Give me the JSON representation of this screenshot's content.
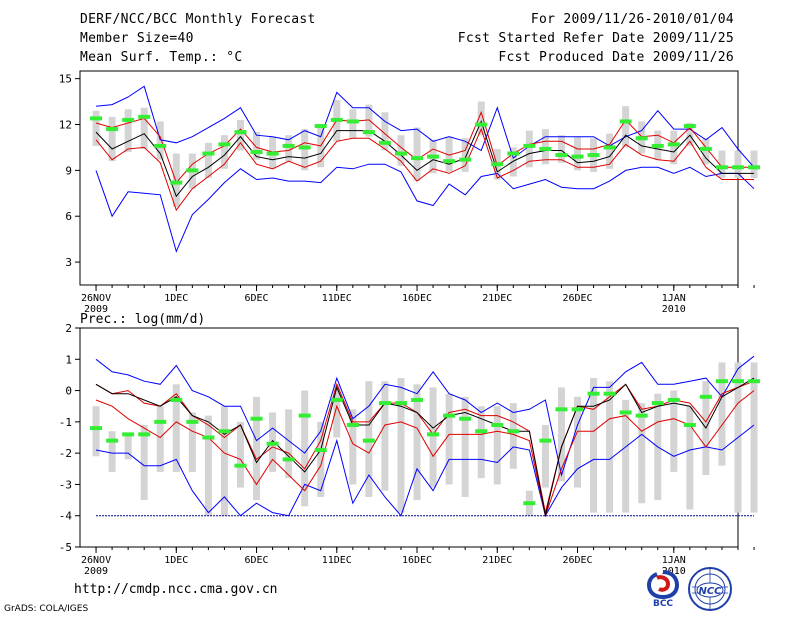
{
  "header": {
    "title": "DERF/NCC/BCC Monthly Forecast",
    "member": "Member Size=40",
    "variable1": "Mean Surf. Temp.: °C",
    "period": "For 2009/11/26-2010/01/04",
    "started": "Fcst Started Refer Date 2009/11/25",
    "produced": "Fcst Produced Date 2009/11/26"
  },
  "footer": {
    "url": "http://cmdp.ncc.cma.gov.cn",
    "grads": "GrADS: COLA/IGES",
    "logo1_text": "BCC",
    "logo2_text": "NCC"
  },
  "colors": {
    "envelope": "#0000ff",
    "spread": "#e00000",
    "mean": "#000000",
    "obs": "#33ee33",
    "box": "#d4d4d4",
    "floor": "#000080"
  },
  "chart_data": [
    {
      "type": "line",
      "title": "Mean Surf. Temp.: °C",
      "x_ticks": [
        {
          "day": 0,
          "label": "26NOV",
          "sub": "2009"
        },
        {
          "day": 5,
          "label": "1DEC"
        },
        {
          "day": 10,
          "label": "6DEC"
        },
        {
          "day": 15,
          "label": "11DEC"
        },
        {
          "day": 20,
          "label": "16DEC"
        },
        {
          "day": 25,
          "label": "21DEC"
        },
        {
          "day": 30,
          "label": "26DEC"
        },
        {
          "day": 36,
          "label": "1JAN",
          "sub": "2010"
        }
      ],
      "xlim": [
        -1,
        40
      ],
      "ylim": [
        1.5,
        15.5
      ],
      "y_ticks": [
        3,
        6,
        9,
        12,
        15
      ],
      "series": [
        {
          "name": "max",
          "values": [
            13.2,
            13.3,
            13.8,
            14.5,
            11,
            10.8,
            11.2,
            11.8,
            12.4,
            13.1,
            11.3,
            11.2,
            11,
            11.6,
            11.2,
            14.1,
            13.1,
            13.1,
            12.2,
            11.6,
            11.7,
            10.9,
            11.2,
            10.9,
            10.3,
            13.1,
            9.8,
            10.6,
            11.2,
            11.2,
            11.2,
            11.2,
            10.6,
            11.2,
            11.6,
            12.9,
            11.7,
            11.7,
            11,
            11.8,
            10.4,
            9.2
          ]
        },
        {
          "name": "p90",
          "values": [
            12.1,
            11.8,
            12.1,
            12.4,
            11.2,
            8.2,
            9.4,
            10.1,
            10.6,
            11.7,
            10.5,
            10.2,
            10.3,
            10.8,
            10.6,
            12.3,
            12.2,
            12.3,
            11.4,
            10.5,
            9.7,
            10.4,
            10,
            10.3,
            12.8,
            9.3,
            10.1,
            10.7,
            10.9,
            10.9,
            10.4,
            10.4,
            10.7,
            12.3,
            11.2,
            11.3,
            10.8,
            11.8,
            10.5,
            9.2,
            9.2,
            9.2
          ]
        },
        {
          "name": "mean",
          "values": [
            11.5,
            10.4,
            10.9,
            11.4,
            10.1,
            7.3,
            8.6,
            9.2,
            10,
            11.2,
            9.9,
            9.7,
            9.9,
            9.8,
            10.1,
            11.6,
            11.6,
            11.6,
            10.9,
            10,
            9,
            9.7,
            9.4,
            9.8,
            12.2,
            8.9,
            9.6,
            10.1,
            10.3,
            10.3,
            9.5,
            9.6,
            9.9,
            11.3,
            10.6,
            10.4,
            10.2,
            11.3,
            9.8,
            8.8,
            8.8,
            8.8
          ]
        },
        {
          "name": "p10",
          "values": [
            11,
            9.7,
            10.4,
            10.5,
            9.5,
            6.4,
            7.8,
            8.6,
            9.4,
            10.8,
            9.4,
            9.1,
            9.6,
            9.2,
            9.6,
            10.9,
            11.1,
            11.1,
            10.4,
            9.6,
            8.3,
            9.1,
            8.8,
            9.3,
            11.7,
            8.5,
            9,
            9.6,
            9.7,
            9.7,
            9.2,
            9.2,
            9.4,
            10.7,
            10,
            9.7,
            9.6,
            10.9,
            9.2,
            8.4,
            8.4,
            8.4
          ]
        },
        {
          "name": "min",
          "values": [
            9,
            6,
            7.6,
            7.5,
            7.4,
            3.7,
            6.1,
            7.1,
            8.2,
            9.1,
            8.4,
            8.5,
            8.3,
            8.3,
            8.2,
            9.2,
            9.1,
            9.4,
            9.4,
            8.9,
            7,
            6.7,
            8.1,
            7.4,
            8.6,
            8.8,
            7.8,
            8.1,
            8.4,
            7.9,
            7.8,
            7.8,
            8.3,
            9,
            9.2,
            9.2,
            8.8,
            9.2,
            8.6,
            8.8,
            8.8,
            7.8
          ]
        },
        {
          "name": "obs",
          "values": [
            12.4,
            11.7,
            12.3,
            12.5,
            10.6,
            8.2,
            9,
            10.1,
            10.7,
            11.5,
            10.2,
            10.1,
            10.6,
            10.5,
            11.9,
            12.3,
            12.2,
            11.5,
            10.8,
            10.1,
            9.8,
            9.9,
            9.6,
            9.7,
            12,
            9.4,
            10.1,
            10.6,
            10.4,
            10,
            9.9,
            10,
            10.5,
            12.2,
            11.1,
            10.6,
            10.7,
            11.9,
            10.4,
            9.2,
            9.2,
            9.2
          ]
        },
        {
          "name": "box_top",
          "values": [
            12.9,
            12.5,
            13,
            13.1,
            12.2,
            10.1,
            10.1,
            10.8,
            11.3,
            12.3,
            11.5,
            11.2,
            11.3,
            11.7,
            11.8,
            13.6,
            13,
            13.3,
            12.8,
            11.3,
            11.8,
            11,
            11.2,
            11.1,
            13.5,
            10.4,
            10.5,
            11.6,
            11.7,
            11.3,
            11.2,
            11.1,
            11.4,
            13.2,
            12.2,
            11.6,
            11.6,
            12.1,
            11.1,
            10.3,
            10.3,
            10.3
          ]
        },
        {
          "name": "box_bottom",
          "values": [
            10.6,
            9.6,
            10.2,
            10.4,
            9.7,
            6.6,
            7.8,
            8.5,
            9.1,
            10.3,
            9.7,
            9.1,
            9.6,
            9,
            9.2,
            10.9,
            11.1,
            11.2,
            10.3,
            9.3,
            8.3,
            8.8,
            8.9,
            8.9,
            11.3,
            8.4,
            8.6,
            9.2,
            9.4,
            9.5,
            9,
            8.9,
            9.1,
            10.5,
            10.1,
            9.7,
            9.4,
            10.6,
            9.4,
            8.5,
            8.5,
            8.5
          ]
        }
      ]
    },
    {
      "type": "line",
      "title": "Prec.: log(mm/d)",
      "x_ticks": [
        {
          "day": 0,
          "label": "26NOV",
          "sub": "2009"
        },
        {
          "day": 5,
          "label": "1DEC"
        },
        {
          "day": 10,
          "label": "6DEC"
        },
        {
          "day": 15,
          "label": "11DEC"
        },
        {
          "day": 20,
          "label": "16DEC"
        },
        {
          "day": 25,
          "label": "21DEC"
        },
        {
          "day": 30,
          "label": "26DEC"
        },
        {
          "day": 36,
          "label": "1JAN",
          "sub": "2010"
        }
      ],
      "xlim": [
        -1,
        40
      ],
      "ylim": [
        -5,
        2
      ],
      "y_ticks": [
        -5,
        -4,
        -3,
        -2,
        -1,
        0,
        1,
        2
      ],
      "series": [
        {
          "name": "max",
          "values": [
            1,
            0.6,
            0.5,
            0.3,
            0.2,
            0.8,
            0,
            -0.2,
            -0.5,
            -0.5,
            -1.6,
            -1.2,
            -1.6,
            -2,
            -1.3,
            0.4,
            -0.9,
            -0.5,
            0.2,
            0.1,
            -0.1,
            0.6,
            -0.1,
            -0.3,
            -0.7,
            -0.4,
            -0.7,
            -0.6,
            -0.3,
            -2.7,
            -1.1,
            0.1,
            0.1,
            0.6,
            0.9,
            0.2,
            0.2,
            0.3,
            0.4,
            -0.2,
            0.7,
            1.1
          ]
        },
        {
          "name": "p90",
          "values": [
            0.2,
            -0.1,
            0,
            -0.4,
            -0.5,
            -0.1,
            -0.8,
            -1.1,
            -1.5,
            -1.1,
            -2.2,
            -1.8,
            -2,
            -2.5,
            -1.6,
            0.2,
            -1,
            -1,
            -0.4,
            -0.4,
            -0.7,
            -1.4,
            -0.7,
            -0.6,
            -0.8,
            -0.8,
            -1,
            -1.3,
            -3.9,
            -1.8,
            -0.5,
            -0.6,
            -0.2,
            0.2,
            -0.6,
            -0.5,
            -0.3,
            -0.4,
            -1,
            -0.1,
            0.1,
            0.3
          ]
        },
        {
          "name": "mean",
          "values": [
            0.2,
            -0.1,
            -0.1,
            -0.3,
            -0.5,
            -0.2,
            -0.8,
            -1,
            -1.4,
            -1.1,
            -2.3,
            -1.6,
            -2.1,
            -2.6,
            -1.9,
            0.1,
            -1.1,
            -1.1,
            -0.4,
            -0.5,
            -0.7,
            -1.2,
            -0.8,
            -0.7,
            -0.9,
            -1.1,
            -1.3,
            -1.3,
            -4,
            -1.8,
            -0.5,
            -0.5,
            -0.3,
            0.2,
            -0.7,
            -0.5,
            -0.4,
            -0.5,
            -1.2,
            -0.2,
            0.1,
            0.4
          ]
        },
        {
          "name": "p10",
          "values": [
            -0.3,
            -0.5,
            -0.9,
            -1.2,
            -1.5,
            -1,
            -1.3,
            -1.5,
            -2,
            -2.2,
            -3,
            -2.2,
            -2.7,
            -3.2,
            -2.4,
            -0.5,
            -1.7,
            -2,
            -1.1,
            -1,
            -1.2,
            -2.1,
            -1.4,
            -1.4,
            -1.4,
            -1.3,
            -1.4,
            -1.6,
            -4,
            -2.5,
            -1.3,
            -1.3,
            -0.9,
            -0.8,
            -1.3,
            -1,
            -0.9,
            -1.1,
            -1.8,
            -1.1,
            -0.4,
            0
          ]
        },
        {
          "name": "min",
          "values": [
            -1.9,
            -2,
            -2,
            -2.4,
            -2.4,
            -2.2,
            -3.2,
            -3.9,
            -3.4,
            -4,
            -3.6,
            -3.9,
            -4,
            -3,
            -3.2,
            -1.6,
            -3.6,
            -2.7,
            -3.4,
            -4,
            -2.5,
            -3.2,
            -2.2,
            -2.2,
            -2.2,
            -2.3,
            -1.8,
            -1.9,
            -4,
            -3.1,
            -2.5,
            -2.2,
            -2.2,
            -1.8,
            -1.4,
            -1.8,
            -2.1,
            -1.9,
            -1.8,
            -1.9,
            -1.5,
            -1.1
          ]
        },
        {
          "name": "obs",
          "values": [
            -1.2,
            -1.6,
            -1.4,
            -1.4,
            -1,
            -0.3,
            -1,
            -1.5,
            -1.3,
            -2.4,
            -0.9,
            -1.7,
            -2.2,
            -0.8,
            -1.9,
            -0.3,
            -1.1,
            -1.6,
            -0.4,
            -0.4,
            -0.3,
            -1.4,
            -0.8,
            -0.9,
            -1.3,
            -1.1,
            -1.3,
            -3.6,
            -1.6,
            -0.6,
            -0.6,
            -0.1,
            -0.1,
            -0.7,
            -0.8,
            -0.4,
            -0.3,
            -1.1,
            -0.2,
            0.3,
            0.3,
            0.3
          ]
        },
        {
          "name": "box_top",
          "values": [
            -0.5,
            -1.3,
            -1.4,
            -1.1,
            -0.5,
            0.2,
            -0.7,
            -0.8,
            -0.5,
            -1,
            -0.2,
            -0.7,
            -0.6,
            0,
            -1,
            0.2,
            -0.6,
            0.3,
            0.3,
            0.4,
            0.2,
            0.1,
            -0.1,
            -0.2,
            -0.5,
            -0.5,
            -0.4,
            -3.2,
            -1.1,
            0.1,
            -0.2,
            0.4,
            0.3,
            -0.3,
            -0.4,
            -0.1,
            0,
            -0.5,
            0.3,
            0.9,
            0.9,
            0.9
          ]
        },
        {
          "name": "box_bottom",
          "values": [
            -2.1,
            -2.6,
            -2.2,
            -3.5,
            -2.6,
            -2.6,
            -2.6,
            -4,
            -4,
            -3.1,
            -3.5,
            -2.6,
            -2.8,
            -3.7,
            -3.4,
            -1.5,
            -3,
            -3.4,
            -3.2,
            -3.9,
            -3.5,
            -3.1,
            -3,
            -3.4,
            -2.8,
            -3,
            -2.5,
            -4,
            -3.1,
            -2.9,
            -3.1,
            -3.9,
            -3.9,
            -3.9,
            -3.6,
            -3.5,
            -2.6,
            -3.8,
            -2.7,
            -2.4,
            -3.9,
            -3.9
          ]
        }
      ]
    }
  ]
}
